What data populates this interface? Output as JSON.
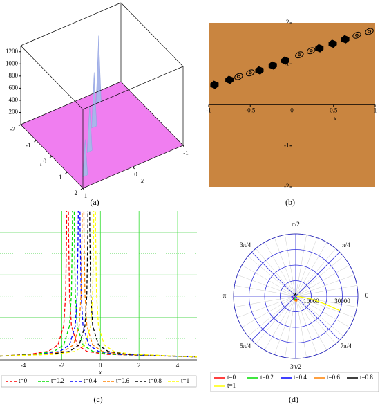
{
  "chart_data": [
    {
      "type": "surface3d",
      "caption": "(a)",
      "xlabel": "x",
      "tlabel": "t",
      "xlim": [
        -1,
        1
      ],
      "xticks": [
        -1,
        0,
        1
      ],
      "tlim": [
        -2,
        2
      ],
      "tticks": [
        -2,
        -1,
        0,
        1,
        2
      ],
      "zlim": [
        0,
        1300
      ],
      "zticks": [
        200,
        400,
        600,
        800,
        1000,
        1200
      ],
      "plane_color": "#f07ef0",
      "peak_color": "#a9b6ea",
      "peaks": {
        "x": [
          0.8,
          0.4,
          0.0,
          -0.4
        ],
        "t": [
          1.5,
          0.5,
          -0.5,
          -1.5
        ],
        "values": [
          600,
          750,
          900,
          1100
        ]
      }
    },
    {
      "type": "contour",
      "caption": "(b)",
      "xlabel": "x",
      "xlim": [
        -1,
        1
      ],
      "xticks": [
        -1,
        -0.5,
        0,
        0.5,
        1
      ],
      "ylim": [
        -2,
        2
      ],
      "yticks": [
        -2,
        -1,
        1,
        2
      ],
      "background": "#c98540",
      "blobs": {
        "x": [
          -0.93,
          -0.75,
          -0.39,
          -0.23,
          -0.08,
          0.33,
          0.49,
          0.64
        ],
        "values": [
          0.49,
          0.61,
          0.84,
          0.96,
          1.08,
          1.38,
          1.49,
          1.6
        ]
      },
      "rings": {
        "x": [
          -0.64,
          -0.5,
          0.09,
          0.23,
          0.78,
          0.93
        ],
        "values": [
          0.69,
          0.78,
          1.22,
          1.32,
          1.7,
          1.79
        ]
      }
    },
    {
      "type": "line",
      "caption": "(c)",
      "xlabel": "x",
      "xlim": [
        -5.2,
        5
      ],
      "xticks": [
        -4,
        -2,
        0,
        2,
        4
      ],
      "ylim": [
        0,
        3.5
      ],
      "ygrid": [
        0.5,
        1,
        1.5,
        2,
        2.5,
        3
      ],
      "series": [
        {
          "name": "t=0",
          "color": "#ff0000",
          "x": [
            -5.2,
            -3.7,
            -2.7,
            -2.2,
            -1.9,
            -1.8,
            -1.75,
            -1.73,
            -1.7,
            -1.67,
            -1.65,
            -1.6,
            -1.5,
            -1.2,
            -0.7,
            0.3,
            5
          ],
          "values": [
            0.09,
            0.13,
            0.2,
            0.35,
            0.8,
            1.55,
            3.05,
            5.05,
            null,
            5.05,
            3.05,
            1.55,
            0.8,
            0.35,
            0.2,
            0.13,
            0.07
          ]
        },
        {
          "name": "t=0.2",
          "color": "#00dd00",
          "x": [
            -5.2,
            -3.4,
            -2.4,
            -1.9,
            -1.6,
            -1.5,
            -1.45,
            -1.43,
            -1.4,
            -1.37,
            -1.35,
            -1.3,
            -1.2,
            -0.9,
            -0.4,
            0.6,
            5
          ],
          "values": [
            0.09,
            0.13,
            0.2,
            0.35,
            0.8,
            1.55,
            3.05,
            5.05,
            null,
            5.05,
            3.05,
            1.55,
            0.8,
            0.35,
            0.2,
            0.13,
            0.07
          ]
        },
        {
          "name": "t=0.4",
          "color": "#0000ff",
          "x": [
            -5.2,
            -3.1,
            -2.1,
            -1.6,
            -1.3,
            -1.2,
            -1.15,
            -1.13,
            -1.1,
            -1.07,
            -1.05,
            -1.0,
            -0.9,
            -0.6,
            -0.1,
            0.9,
            5
          ],
          "values": [
            0.09,
            0.13,
            0.2,
            0.35,
            0.8,
            1.55,
            3.05,
            5.05,
            null,
            5.05,
            3.05,
            1.55,
            0.8,
            0.35,
            0.2,
            0.13,
            0.07
          ]
        },
        {
          "name": "t=0.6",
          "color": "#ff8000",
          "x": [
            -5.2,
            -2.9,
            -1.9,
            -1.4,
            -1.1,
            -1.0,
            -0.95,
            -0.93,
            -0.9,
            -0.87,
            -0.85,
            -0.8,
            -0.7,
            -0.4,
            0.1,
            1.1,
            5
          ],
          "values": [
            0.09,
            0.13,
            0.2,
            0.35,
            0.8,
            1.55,
            3.05,
            5.05,
            null,
            5.05,
            3.05,
            1.55,
            0.8,
            0.35,
            0.2,
            0.13,
            0.07
          ]
        },
        {
          "name": "t=0.8",
          "color": "#000000",
          "x": [
            -5.2,
            -2.6,
            -1.6,
            -1.1,
            -0.8,
            -0.7,
            -0.65,
            -0.63,
            -0.6,
            -0.57,
            -0.55,
            -0.5,
            -0.4,
            -0.1,
            0.4,
            1.4,
            5
          ],
          "values": [
            0.09,
            0.13,
            0.2,
            0.35,
            0.8,
            1.55,
            3.05,
            5.05,
            null,
            5.05,
            3.05,
            1.55,
            0.8,
            0.35,
            0.2,
            0.13,
            0.07
          ]
        },
        {
          "name": "t=1",
          "color": "#ffff00",
          "x": [
            -5.2,
            -2.3,
            -1.3,
            -0.8,
            -0.5,
            -0.4,
            -0.35,
            -0.33,
            -0.3,
            -0.27,
            -0.25,
            -0.2,
            -0.1,
            0.2,
            0.7,
            1.7,
            5
          ],
          "values": [
            0.09,
            0.13,
            0.2,
            0.35,
            0.8,
            1.55,
            3.05,
            5.05,
            null,
            5.05,
            3.05,
            1.55,
            0.8,
            0.35,
            0.2,
            0.13,
            0.07
          ]
        }
      ]
    },
    {
      "type": "polar",
      "caption": "(d)",
      "rlim": [
        0,
        40000
      ],
      "rgrid": [
        10000,
        20000,
        30000,
        40000
      ],
      "rticks": [
        10000,
        30000
      ],
      "thetaticks": [
        {
          "value": 0,
          "label": "0"
        },
        {
          "value": 45,
          "label": "π/4"
        },
        {
          "value": 90,
          "label": "π/2"
        },
        {
          "value": 135,
          "label": "3π/4"
        },
        {
          "value": 180,
          "label": "π"
        },
        {
          "value": 225,
          "label": "5π/4"
        },
        {
          "value": 270,
          "label": "3π/2"
        },
        {
          "value": 315,
          "label": "7π/4"
        }
      ],
      "series": [
        {
          "name": "t=0",
          "color": "#ff0000",
          "theta": [
            200,
            240,
            270,
            300
          ],
          "values": [
            1500,
            2500,
            3000,
            2000
          ]
        },
        {
          "name": "t=0.2",
          "color": "#00dd00",
          "theta": [
            210,
            250,
            280
          ],
          "values": [
            1200,
            2200,
            1800
          ]
        },
        {
          "name": "t=0.4",
          "color": "#0000ff",
          "theta": [
            160,
            190,
            230
          ],
          "values": [
            1500,
            2600,
            2000
          ]
        },
        {
          "name": "t=0.6",
          "color": "#ff8000",
          "theta": [
            250,
            275,
            300
          ],
          "values": [
            2500,
            3500,
            2500
          ]
        },
        {
          "name": "t=0.8",
          "color": "#000000",
          "theta": [
            60,
            100,
            140
          ],
          "values": [
            1000,
            1500,
            1000
          ]
        },
        {
          "name": "t=1",
          "color": "#ffff00",
          "theta": [
            0,
            350,
            345,
            342
          ],
          "values": [
            500,
            10000,
            20000,
            30000
          ]
        }
      ]
    }
  ]
}
